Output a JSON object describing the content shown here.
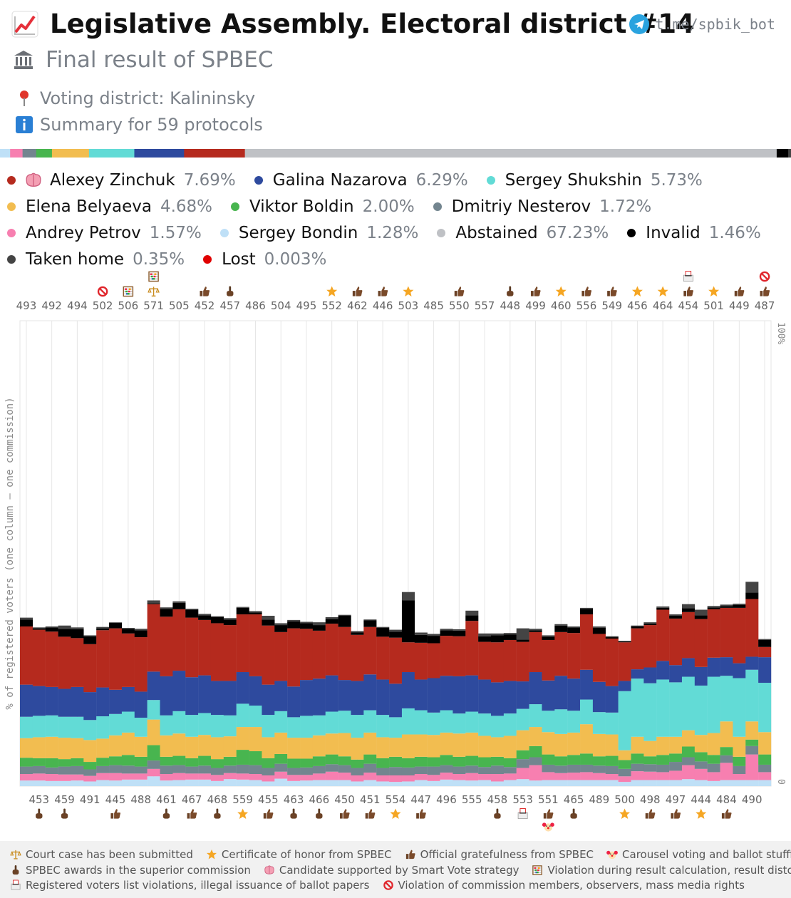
{
  "header": {
    "title": "Legislative Assembly. Electoral district #14",
    "subtitle": "Final result of SPBEC",
    "telegram": "t.me/spbik_bot",
    "district": "Voting district: Kalininsky",
    "summary": "Summary for 59 protocols"
  },
  "legend": [
    {
      "name": "Alexey Zinchuk",
      "pct": "7.69%",
      "color": "#b52a1e",
      "smart": true
    },
    {
      "name": "Galina Nazarova",
      "pct": "6.29%",
      "color": "#2e4a9e"
    },
    {
      "name": "Sergey Shukshin",
      "pct": "5.73%",
      "color": "#62dbd6"
    },
    {
      "name": "Elena Belyaeva",
      "pct": "4.68%",
      "color": "#f2bd50"
    },
    {
      "name": "Viktor Boldin",
      "pct": "2.00%",
      "color": "#48b54f"
    },
    {
      "name": "Dmitriy Nesterov",
      "pct": "1.72%",
      "color": "#73858f"
    },
    {
      "name": "Andrey Petrov",
      "pct": "1.57%",
      "color": "#f77fb0"
    },
    {
      "name": "Sergey Bondin",
      "pct": "1.28%",
      "color": "#bfe0f7"
    },
    {
      "name": "Abstained",
      "pct": "67.23%",
      "color": "#bfc1c5"
    },
    {
      "name": "Invalid",
      "pct": "1.46%",
      "color": "#000000"
    },
    {
      "name": "Taken home",
      "pct": "0.35%",
      "color": "#444444"
    },
    {
      "name": "Lost",
      "pct": "0.003%",
      "color": "#e00000"
    }
  ],
  "chart_data": {
    "type": "bar",
    "stacked": true,
    "ylabel": "% of registered voters (one column – one commission)",
    "ytick_top": "100%",
    "ytick_bottom": "0",
    "ylim": [
      0,
      100
    ],
    "stack_order": [
      "Sergey Bondin",
      "Andrey Petrov",
      "Dmitriy Nesterov",
      "Viktor Boldin",
      "Elena Belyaeva",
      "Sergey Shukshin",
      "Galina Nazarova",
      "Alexey Zinchuk",
      "Invalid",
      "Taken home"
    ],
    "categories": [
      "493",
      "453",
      "492",
      "459",
      "494",
      "491",
      "502",
      "445",
      "506",
      "488",
      "571",
      "461",
      "505",
      "467",
      "452",
      "468",
      "457",
      "559",
      "486",
      "455",
      "504",
      "463",
      "495",
      "466",
      "552",
      "450",
      "462",
      "451",
      "446",
      "554",
      "503",
      "447",
      "485",
      "496",
      "550",
      "555",
      "557",
      "458",
      "448",
      "553",
      "499",
      "551",
      "460",
      "465",
      "556",
      "489",
      "549",
      "500",
      "456",
      "498",
      "464",
      "497",
      "454",
      "444",
      "501",
      "484",
      "449",
      "490",
      "487"
    ],
    "series": [
      {
        "name": "Sergey Bondin",
        "values": [
          1.2,
          1.2,
          1.1,
          1.1,
          1.2,
          1.0,
          1.3,
          1.2,
          1.4,
          1.4,
          2.1,
          1.2,
          1.3,
          1.4,
          1.4,
          1.1,
          1.5,
          1.4,
          1.3,
          1.0,
          1.6,
          1.1,
          1.2,
          1.3,
          1.3,
          1.3,
          1.0,
          1.3,
          1.0,
          0.9,
          1.0,
          1.3,
          1.1,
          1.4,
          1.3,
          1.2,
          1.3,
          1.0,
          1.3,
          1.5,
          1.2,
          1.3,
          1.3,
          1.3,
          1.3,
          1.3,
          1.3,
          0.9,
          1.3,
          1.3,
          1.3,
          1.3,
          1.5,
          1.3,
          1.1,
          1.3,
          1.3,
          1.3,
          1.3
        ]
      },
      {
        "name": "Andrey Petrov",
        "values": [
          1.4,
          1.5,
          1.5,
          1.4,
          1.3,
          1.2,
          1.5,
          1.6,
          1.3,
          1.3,
          1.6,
          1.4,
          1.5,
          1.3,
          1.3,
          1.3,
          1.3,
          1.3,
          1.3,
          1.3,
          1.5,
          1.3,
          1.2,
          1.4,
          1.8,
          1.6,
          1.3,
          1.6,
          1.3,
          1.4,
          1.3,
          1.3,
          1.3,
          1.5,
          1.3,
          1.6,
          1.3,
          1.6,
          1.4,
          2.4,
          3.3,
          1.7,
          1.5,
          1.6,
          1.7,
          1.5,
          1.3,
          1.2,
          1.9,
          1.8,
          1.7,
          2.0,
          3.0,
          2.4,
          1.9,
          3.7,
          1.3,
          5.5,
          1.7
        ]
      },
      {
        "name": "Dmitriy Nesterov",
        "values": [
          1.6,
          1.6,
          1.4,
          1.7,
          1.8,
          1.4,
          1.5,
          1.7,
          1.7,
          1.5,
          1.8,
          1.8,
          1.7,
          1.5,
          1.7,
          1.5,
          1.6,
          1.9,
          1.9,
          1.6,
          1.7,
          1.5,
          1.6,
          1.6,
          1.6,
          1.6,
          1.6,
          1.9,
          1.6,
          1.8,
          1.7,
          1.6,
          1.8,
          1.6,
          1.6,
          1.6,
          1.5,
          1.8,
          1.4,
          1.9,
          1.7,
          1.6,
          1.6,
          1.7,
          1.6,
          1.6,
          1.7,
          1.6,
          1.6,
          1.6,
          1.6,
          1.9,
          1.7,
          1.6,
          1.8,
          1.6,
          1.7,
          1.8,
          1.6
        ]
      },
      {
        "name": "Viktor Boldin",
        "values": [
          1.9,
          1.7,
          2.0,
          1.6,
          1.7,
          1.6,
          1.8,
          1.9,
          2.3,
          2.1,
          3.3,
          1.9,
          2.0,
          1.8,
          2.1,
          1.9,
          1.9,
          3.2,
          3.0,
          2.1,
          2.1,
          2.0,
          1.9,
          2.1,
          2.1,
          1.9,
          1.8,
          2.0,
          2.1,
          2.2,
          2.0,
          2.1,
          2.0,
          2.2,
          2.1,
          2.1,
          2.1,
          1.9,
          1.9,
          1.9,
          2.4,
          2.2,
          2.0,
          2.1,
          2.4,
          2.0,
          2.2,
          1.9,
          2.2,
          1.7,
          2.1,
          1.8,
          2.3,
          2.0,
          1.9,
          1.8,
          2.0,
          1.4,
          2.2
        ]
      },
      {
        "name": "Elena Belyaeva",
        "values": [
          4.2,
          4.5,
          4.6,
          4.6,
          4.3,
          4.7,
          4.1,
          4.5,
          4.8,
          4.3,
          5.5,
          4.6,
          4.8,
          4.6,
          4.5,
          4.7,
          4.4,
          4.9,
          5.2,
          4.5,
          4.6,
          4.5,
          4.5,
          4.5,
          4.5,
          5.0,
          4.7,
          4.7,
          4.5,
          4.1,
          5.1,
          4.8,
          4.8,
          4.8,
          5.0,
          5.0,
          4.6,
          4.2,
          4.8,
          4.3,
          4.1,
          4.8,
          4.8,
          4.8,
          6.3,
          4.8,
          4.6,
          2.1,
          3.6,
          3.3,
          3.9,
          3.6,
          3.5,
          3.7,
          4.7,
          5.5,
          4.3,
          3.9,
          4.8
        ]
      },
      {
        "name": "Sergey Shukshin",
        "values": [
          4.6,
          4.6,
          4.6,
          4.5,
          4.6,
          4.3,
          4.8,
          4.6,
          4.5,
          4.1,
          4.2,
          4.3,
          4.8,
          4.7,
          4.7,
          4.8,
          4.5,
          5.0,
          4.6,
          4.8,
          4.6,
          4.4,
          4.7,
          4.3,
          4.7,
          4.8,
          4.9,
          4.8,
          4.8,
          4.4,
          5.6,
          5.2,
          4.8,
          4.8,
          4.3,
          4.5,
          4.8,
          4.6,
          4.8,
          4.6,
          4.9,
          4.6,
          5.3,
          4.7,
          5.3,
          4.7,
          4.7,
          12.7,
          12.5,
          12.4,
          12.3,
          11.7,
          11.5,
          10.6,
          12.1,
          9.8,
          12.6,
          11.1,
          10.6
        ]
      },
      {
        "name": "Galina Nazarova",
        "values": [
          6.9,
          6.4,
          6.1,
          6.0,
          6.4,
          6.0,
          6.2,
          5.2,
          5.3,
          5.6,
          6.1,
          8.4,
          8.7,
          8.1,
          8.1,
          7.3,
          7.4,
          6.8,
          6.3,
          6.5,
          6.5,
          6.6,
          7.7,
          7.9,
          7.8,
          6.6,
          7.3,
          7.7,
          7.6,
          7.2,
          7.8,
          6.6,
          7.4,
          7.4,
          8.0,
          7.8,
          7.3,
          7.2,
          7.0,
          5.9,
          6.9,
          6.5,
          7.2,
          6.9,
          6.4,
          6.5,
          5.7,
          2.2,
          2.0,
          3.4,
          4.0,
          3.7,
          4.0,
          4.0,
          4.1,
          4.0,
          3.2,
          2.8,
          5.5
        ]
      },
      {
        "name": "Alexey Zinchuk",
        "values": [
          12.5,
          12.1,
          11.9,
          11.2,
          10.5,
          10.3,
          12.3,
          13.2,
          11.5,
          11.7,
          14.5,
          12.8,
          13.2,
          12.8,
          11.9,
          12.4,
          12.0,
          12.4,
          13.3,
          12.7,
          10.5,
          12.5,
          11.0,
          10.3,
          11.1,
          11.4,
          9.9,
          10.2,
          9.2,
          9.9,
          6.4,
          7.9,
          7.5,
          8.6,
          8.6,
          11.7,
          8.1,
          8.6,
          8.8,
          8.5,
          8.6,
          8.7,
          9.4,
          9.8,
          11.9,
          10.3,
          10.2,
          8.3,
          8.8,
          9.1,
          11.0,
          10.0,
          9.9,
          10.3,
          10.4,
          10.6,
          11.9,
          12.4,
          2.2
        ]
      },
      {
        "name": "Invalid",
        "values": [
          1.5,
          0.3,
          0.9,
          1.7,
          1.9,
          1.7,
          0.4,
          1.2,
          1.0,
          1.5,
          0.2,
          1.7,
          1.4,
          1.7,
          1.0,
          1.3,
          1.2,
          1.4,
          0.4,
          1.3,
          1.5,
          1.5,
          1.2,
          1.2,
          1.0,
          2.4,
          0.5,
          1.4,
          1.9,
          1.3,
          9.0,
          1.7,
          1.6,
          1.2,
          1.2,
          1.2,
          1.2,
          1.5,
          1.2,
          0.5,
          0.4,
          0.7,
          1.4,
          1.2,
          1.2,
          1.3,
          0.3,
          0.2,
          0.4,
          0.3,
          0.4,
          0.6,
          0.8,
          0.8,
          0.4,
          0.4,
          0.6,
          1.4,
          1.5
        ]
      },
      {
        "name": "Taken home",
        "values": [
          0.4,
          0.2,
          0.2,
          0.7,
          0.4,
          0.2,
          0.3,
          0.1,
          0.2,
          0.3,
          0.6,
          0.3,
          0.3,
          0.2,
          0.3,
          0.2,
          0.3,
          0.2,
          0.3,
          0.8,
          0.4,
          0.3,
          0.3,
          0.6,
          0.4,
          0.2,
          0.3,
          0.2,
          0.2,
          0.4,
          1.8,
          0.5,
          0.4,
          0.3,
          0.3,
          1.0,
          0.6,
          0.4,
          0.3,
          2.4,
          0.3,
          0.3,
          0.3,
          0.2,
          0.2,
          0.3,
          0.2,
          0.1,
          0.2,
          0.3,
          0.3,
          0.3,
          0.9,
          1.2,
          0.3,
          0.3,
          0.3,
          2.3,
          0.2
        ]
      }
    ],
    "summary_bar_order": [
      "Sergey Bondin",
      "Andrey Petrov",
      "Dmitriy Nesterov",
      "Viktor Boldin",
      "Elena Belyaeva",
      "Sergey Shukshin",
      "Galina Nazarova",
      "Alexey Zinchuk",
      "Abstained",
      "Invalid",
      "Taken home"
    ],
    "summary_bar_values": [
      1.28,
      1.57,
      1.72,
      2.0,
      4.68,
      5.73,
      6.29,
      7.69,
      67.23,
      1.46,
      0.35
    ]
  },
  "markers_top": [
    {
      "index": 6,
      "icons": [
        "prohibited-icon"
      ]
    },
    {
      "index": 8,
      "icons": [
        "abacus-icon"
      ]
    },
    {
      "index": 10,
      "icons": [
        "abacus-icon",
        "scales-icon"
      ]
    },
    {
      "index": 14,
      "icons": [
        "thumbs-up-icon"
      ]
    },
    {
      "index": 16,
      "icons": [
        "point-up-icon"
      ]
    },
    {
      "index": 24,
      "icons": [
        "star-icon"
      ]
    },
    {
      "index": 26,
      "icons": [
        "thumbs-up-icon"
      ]
    },
    {
      "index": 28,
      "icons": [
        "thumbs-up-icon"
      ]
    },
    {
      "index": 30,
      "icons": [
        "star-icon"
      ]
    },
    {
      "index": 34,
      "icons": [
        "thumbs-up-icon"
      ]
    },
    {
      "index": 38,
      "icons": [
        "point-up-icon"
      ]
    },
    {
      "index": 40,
      "icons": [
        "thumbs-up-icon"
      ]
    },
    {
      "index": 42,
      "icons": [
        "star-icon"
      ]
    },
    {
      "index": 44,
      "icons": [
        "thumbs-up-icon"
      ]
    },
    {
      "index": 46,
      "icons": [
        "thumbs-up-icon"
      ]
    },
    {
      "index": 48,
      "icons": [
        "star-icon"
      ]
    },
    {
      "index": 50,
      "icons": [
        "star-icon"
      ]
    },
    {
      "index": 52,
      "icons": [
        "ballot-box-icon",
        "thumbs-up-icon"
      ]
    },
    {
      "index": 54,
      "icons": [
        "star-icon"
      ]
    },
    {
      "index": 56,
      "icons": [
        "thumbs-up-icon"
      ]
    },
    {
      "index": 58,
      "icons": [
        "prohibited-icon",
        "thumbs-up-icon"
      ]
    }
  ],
  "markers_bottom": [
    {
      "index": 1,
      "icons": [
        "point-up-icon"
      ]
    },
    {
      "index": 3,
      "icons": [
        "point-up-icon"
      ]
    },
    {
      "index": 7,
      "icons": [
        "thumbs-up-icon"
      ]
    },
    {
      "index": 11,
      "icons": [
        "point-up-icon"
      ]
    },
    {
      "index": 13,
      "icons": [
        "thumbs-up-icon"
      ]
    },
    {
      "index": 15,
      "icons": [
        "point-up-icon"
      ]
    },
    {
      "index": 17,
      "icons": [
        "star-icon"
      ]
    },
    {
      "index": 19,
      "icons": [
        "thumbs-up-icon"
      ]
    },
    {
      "index": 21,
      "icons": [
        "point-up-icon"
      ]
    },
    {
      "index": 23,
      "icons": [
        "point-up-icon"
      ]
    },
    {
      "index": 25,
      "icons": [
        "thumbs-up-icon"
      ]
    },
    {
      "index": 27,
      "icons": [
        "thumbs-up-icon"
      ]
    },
    {
      "index": 29,
      "icons": [
        "star-icon"
      ]
    },
    {
      "index": 31,
      "icons": [
        "thumbs-up-icon"
      ]
    },
    {
      "index": 37,
      "icons": [
        "point-up-icon"
      ]
    },
    {
      "index": 39,
      "icons": [
        "ballot-box-icon"
      ]
    },
    {
      "index": 41,
      "icons": [
        "thumbs-up-icon",
        "clown-icon"
      ]
    },
    {
      "index": 43,
      "icons": [
        "point-up-icon"
      ]
    },
    {
      "index": 47,
      "icons": [
        "star-icon"
      ]
    },
    {
      "index": 49,
      "icons": [
        "thumbs-up-icon"
      ]
    },
    {
      "index": 51,
      "icons": [
        "thumbs-up-icon"
      ]
    },
    {
      "index": 53,
      "icons": [
        "star-icon"
      ]
    },
    {
      "index": 55,
      "icons": [
        "thumbs-up-icon"
      ]
    }
  ],
  "footer": {
    "row1": [
      {
        "icon": "scales-icon",
        "text": "Court case has been submitted"
      },
      {
        "icon": "star-icon",
        "text": "Certificate of honor from SPBEC"
      },
      {
        "icon": "thumbs-up-icon",
        "text": "Official gratefulness from SPBEC"
      },
      {
        "icon": "clown-icon",
        "text": "Carousel voting and ballot stuffing"
      }
    ],
    "row2": [
      {
        "icon": "point-up-icon",
        "text": "SPBEC awards in the superior commission"
      },
      {
        "icon": "brain-icon",
        "text": "Candidate supported by Smart Vote strategy"
      },
      {
        "icon": "abacus-icon",
        "text": "Violation during result calculation, result distortion"
      }
    ],
    "row3": [
      {
        "icon": "ballot-box-icon",
        "text": "Registered voters list violations, illegal issuance of ballot papers"
      },
      {
        "icon": "prohibited-icon",
        "text": "Violation of commission members, observers, mass media rights"
      }
    ]
  }
}
